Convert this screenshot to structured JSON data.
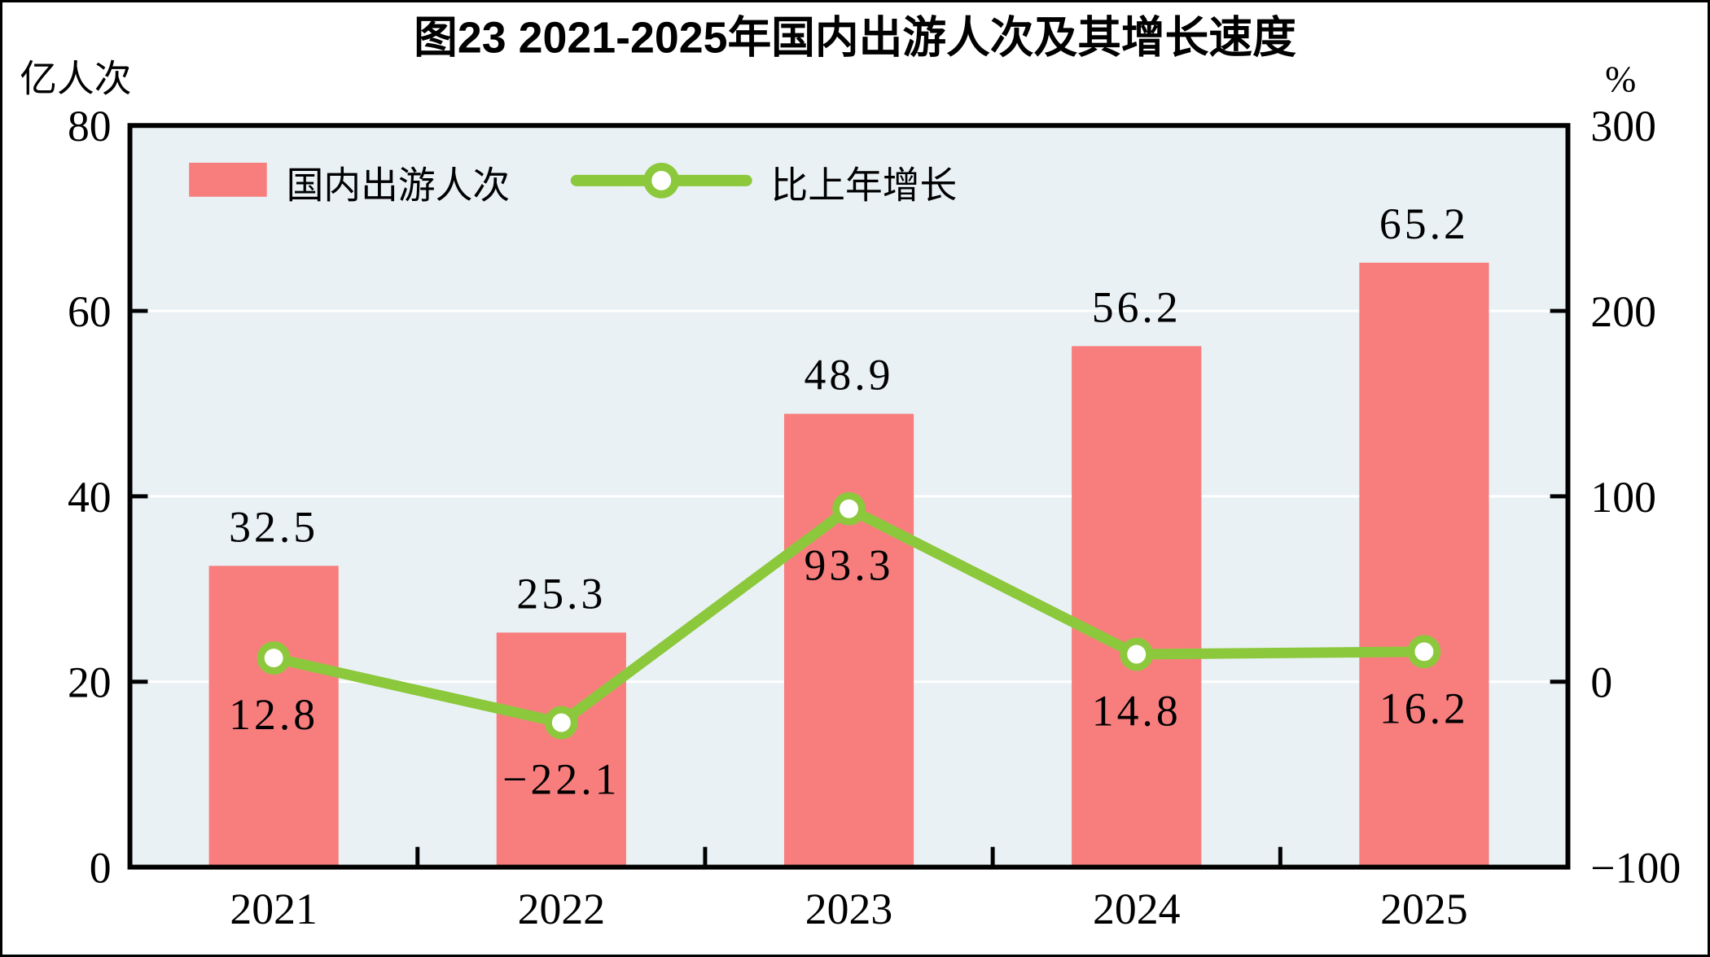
{
  "chart_data": {
    "type": "bar",
    "subtype": "combo-bar-line-dual-axis",
    "title": "图23  2021-2025年国内出游人次及其增长速度",
    "categories": [
      "2021",
      "2022",
      "2023",
      "2024",
      "2025"
    ],
    "series": [
      {
        "name": "国内出游人次",
        "type": "bar",
        "axis": "left",
        "values": [
          32.5,
          25.3,
          48.9,
          56.2,
          65.2
        ],
        "labels": [
          "32.5",
          "25.3",
          "48.9",
          "56.2",
          "65.2"
        ],
        "color": "#F87E7E"
      },
      {
        "name": "比上年增长",
        "type": "line",
        "axis": "right",
        "values": [
          12.8,
          -22.1,
          93.3,
          14.8,
          16.2
        ],
        "labels": [
          "12.8",
          "−22.1",
          "93.3",
          "14.8",
          "16.2"
        ],
        "color": "#8CC83C",
        "marker": "circle-white-fill"
      }
    ],
    "left_axis": {
      "unit": "亿人次",
      "min": 0,
      "max": 80,
      "ticks": [
        0,
        20,
        40,
        60,
        80
      ],
      "tick_labels": [
        "0",
        "20",
        "40",
        "60",
        "80"
      ]
    },
    "right_axis": {
      "unit": "%",
      "min": -100,
      "max": 300,
      "ticks": [
        -100,
        0,
        100,
        200,
        300
      ],
      "tick_labels": [
        "−100",
        "0",
        "100",
        "200",
        "300"
      ]
    },
    "legend_position": "top-left-inside",
    "grid": "horizontal-white-lines",
    "colors": {
      "plot_background": "#E9F1F5",
      "gridline": "#FFFFFF",
      "axis_frame": "#000000",
      "text": "#000000"
    }
  }
}
